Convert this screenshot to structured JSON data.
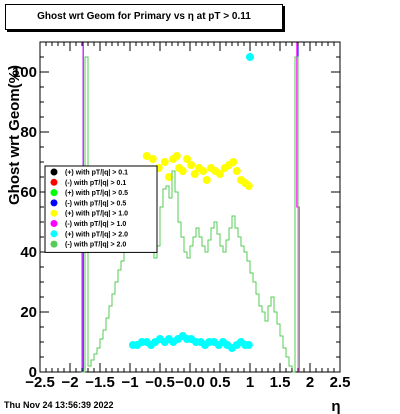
{
  "chart_data": {
    "type": "scatter",
    "title": "Ghost wrt Geom for Primary vs   η at pT > 0.11",
    "xlabel": "η",
    "ylabel": "Ghost wrt Geom(%)",
    "xlim": [
      -2.5,
      2.5
    ],
    "ylim": [
      0,
      110
    ],
    "x_ticks": [
      "−2.5",
      "−2",
      "−1.5",
      "−1",
      "−0.5",
      "−0.0",
      "0.5",
      "1",
      "1.5",
      "2",
      "2.5"
    ],
    "x_tick_values": [
      -2.5,
      -2,
      -1.5,
      -1,
      -0.5,
      0,
      0.5,
      1,
      1.5,
      2,
      2.5
    ],
    "y_ticks": [
      "0",
      "20",
      "40",
      "60",
      "80",
      "100"
    ],
    "y_tick_values": [
      0,
      20,
      40,
      60,
      80,
      100
    ],
    "legend_placement": "left-middle",
    "series": [
      {
        "name": "(+) with pT/|q| > 0.1",
        "color": "#000000",
        "style": "marker",
        "values": []
      },
      {
        "name": "(-) with pT/|q| > 0.1",
        "color": "#ff0000",
        "style": "marker",
        "values": []
      },
      {
        "name": "(+) with pT/|q| > 0.5",
        "color": "#00ff00",
        "style": "marker",
        "values": []
      },
      {
        "name": "(-) with pT/|q| > 0.5",
        "color": "#0000ff",
        "style": "step",
        "values": [
          [
            -1.8,
            0
          ],
          [
            -1.78,
            110
          ],
          [
            1.78,
            110
          ],
          [
            1.8,
            0
          ]
        ]
      },
      {
        "name": "(+) with pT/|q| > 1.0",
        "color": "#ffff00",
        "style": "marker",
        "values": [
          [
            -0.72,
            72
          ],
          [
            -0.62,
            71
          ],
          [
            -0.52,
            68
          ],
          [
            -0.42,
            70
          ],
          [
            -0.35,
            65
          ],
          [
            -0.28,
            71
          ],
          [
            -0.22,
            72
          ],
          [
            -0.18,
            68
          ],
          [
            -0.12,
            67
          ],
          [
            -0.05,
            71
          ],
          [
            0.02,
            69
          ],
          [
            0.08,
            66
          ],
          [
            0.15,
            68
          ],
          [
            0.22,
            67
          ],
          [
            0.28,
            64
          ],
          [
            0.35,
            68
          ],
          [
            0.42,
            67
          ],
          [
            0.5,
            66
          ],
          [
            0.58,
            68
          ],
          [
            0.65,
            69
          ],
          [
            0.72,
            70
          ],
          [
            0.78,
            67
          ],
          [
            0.85,
            64
          ],
          [
            0.92,
            63
          ],
          [
            0.98,
            62
          ]
        ]
      },
      {
        "name": "(-) with pT/|q| > 1.0",
        "color": "#ff00ff",
        "style": "step",
        "values": [
          [
            -1.82,
            0
          ],
          [
            -1.8,
            55
          ],
          [
            -1.78,
            110
          ],
          [
            1.76,
            110
          ],
          [
            1.78,
            55
          ],
          [
            1.82,
            0
          ]
        ]
      },
      {
        "name": "(+) with pT/|q| > 2.0",
        "color": "#00ffff",
        "style": "marker",
        "values": [
          [
            -0.95,
            9
          ],
          [
            -0.88,
            9
          ],
          [
            -0.8,
            10
          ],
          [
            -0.72,
            10
          ],
          [
            -0.65,
            9
          ],
          [
            -0.58,
            10
          ],
          [
            -0.5,
            11
          ],
          [
            -0.42,
            10
          ],
          [
            -0.35,
            11
          ],
          [
            -0.28,
            10
          ],
          [
            -0.2,
            11
          ],
          [
            -0.12,
            12
          ],
          [
            -0.05,
            11
          ],
          [
            0.02,
            11
          ],
          [
            0.1,
            10
          ],
          [
            0.18,
            10
          ],
          [
            0.25,
            9
          ],
          [
            0.32,
            10
          ],
          [
            0.4,
            10
          ],
          [
            0.48,
            9
          ],
          [
            0.55,
            10
          ],
          [
            0.62,
            9
          ],
          [
            0.7,
            8
          ],
          [
            0.78,
            9
          ],
          [
            0.85,
            10
          ],
          [
            0.92,
            9
          ],
          [
            0.98,
            9
          ],
          [
            1.0,
            105
          ]
        ]
      },
      {
        "name": "(-) with pT/|q| > 2.0",
        "color": "#55cc55",
        "style": "step",
        "values": [
          [
            -1.8,
            0
          ],
          [
            -1.75,
            105
          ],
          [
            -1.7,
            2
          ],
          [
            -1.65,
            4
          ],
          [
            -1.6,
            6
          ],
          [
            -1.55,
            8
          ],
          [
            -1.5,
            11
          ],
          [
            -1.45,
            14
          ],
          [
            -1.4,
            18
          ],
          [
            -1.35,
            22
          ],
          [
            -1.3,
            26
          ],
          [
            -1.25,
            30
          ],
          [
            -1.2,
            34
          ],
          [
            -1.15,
            37
          ],
          [
            -1.1,
            40
          ],
          [
            -1.05,
            42
          ],
          [
            -1.0,
            45
          ],
          [
            -0.95,
            48
          ],
          [
            -0.9,
            51
          ],
          [
            -0.85,
            53
          ],
          [
            -0.8,
            55
          ],
          [
            -0.75,
            49
          ],
          [
            -0.7,
            45
          ],
          [
            -0.65,
            40
          ],
          [
            -0.6,
            38
          ],
          [
            -0.55,
            42
          ],
          [
            -0.5,
            55
          ],
          [
            -0.45,
            61
          ],
          [
            -0.4,
            62
          ],
          [
            -0.35,
            58
          ],
          [
            -0.3,
            67
          ],
          [
            -0.25,
            60
          ],
          [
            -0.2,
            50
          ],
          [
            -0.15,
            45
          ],
          [
            -0.1,
            40
          ],
          [
            -0.05,
            38
          ],
          [
            0.0,
            42
          ],
          [
            0.05,
            45
          ],
          [
            0.1,
            48
          ],
          [
            0.15,
            45
          ],
          [
            0.2,
            42
          ],
          [
            0.25,
            40
          ],
          [
            0.3,
            44
          ],
          [
            0.35,
            48
          ],
          [
            0.4,
            50
          ],
          [
            0.45,
            46
          ],
          [
            0.5,
            42
          ],
          [
            0.55,
            40
          ],
          [
            0.6,
            44
          ],
          [
            0.65,
            48
          ],
          [
            0.7,
            52
          ],
          [
            0.75,
            48
          ],
          [
            0.8,
            45
          ],
          [
            0.85,
            42
          ],
          [
            0.9,
            40
          ],
          [
            0.95,
            37
          ],
          [
            1.0,
            33
          ],
          [
            1.05,
            30
          ],
          [
            1.1,
            26
          ],
          [
            1.15,
            22
          ],
          [
            1.2,
            20
          ],
          [
            1.25,
            17
          ],
          [
            1.3,
            22
          ],
          [
            1.35,
            25
          ],
          [
            1.4,
            20
          ],
          [
            1.45,
            16
          ],
          [
            1.5,
            12
          ],
          [
            1.55,
            8
          ],
          [
            1.6,
            5
          ],
          [
            1.65,
            2
          ],
          [
            1.7,
            0
          ],
          [
            1.75,
            105
          ],
          [
            1.8,
            0
          ]
        ]
      }
    ]
  },
  "footer": {
    "timestamp": "Thu Nov 24 13:56:39 2022"
  }
}
